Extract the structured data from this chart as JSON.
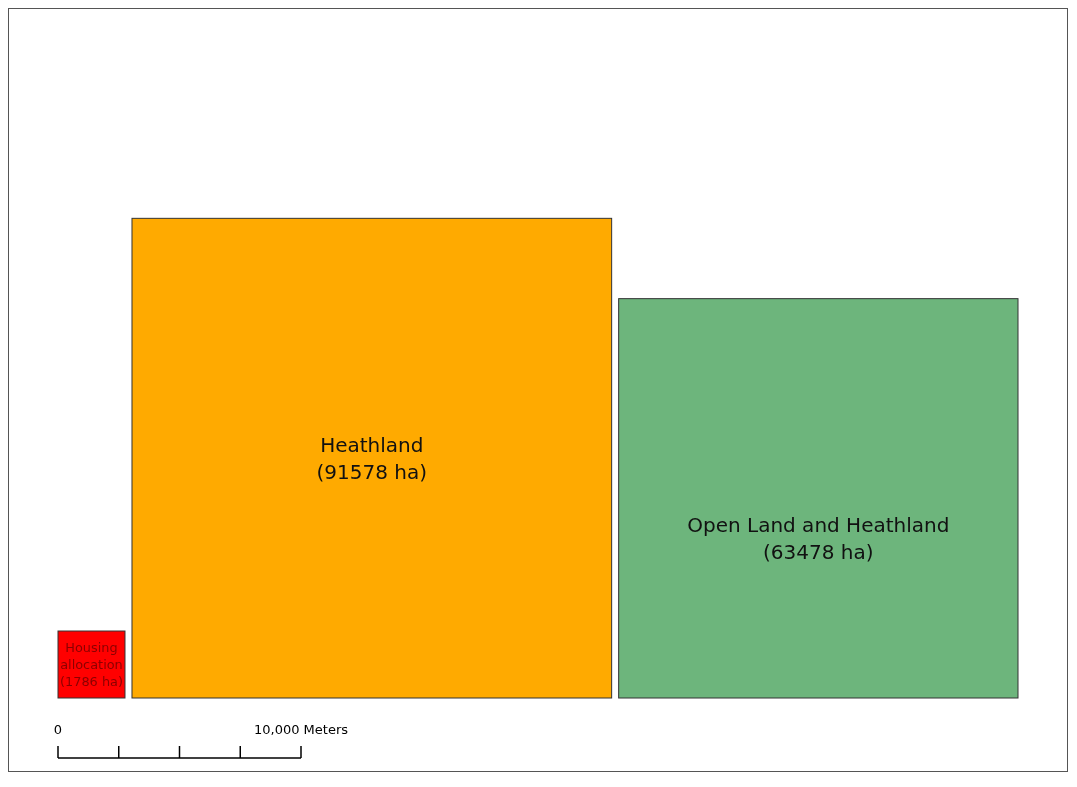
{
  "chart_data": {
    "type": "other",
    "categories": [
      "Housing allocation",
      "Heathland",
      "Open Land and Heathland"
    ],
    "values": [
      1786,
      91578,
      63478
    ],
    "value_labels": [
      "(1786 ha)",
      "(91578 ha)",
      "(63478 ha)"
    ],
    "colors": [
      "#ff0000",
      "#ffaa00",
      "#6db57c"
    ],
    "annotations": [
      "0",
      "10,000 Meters"
    ]
  }
}
